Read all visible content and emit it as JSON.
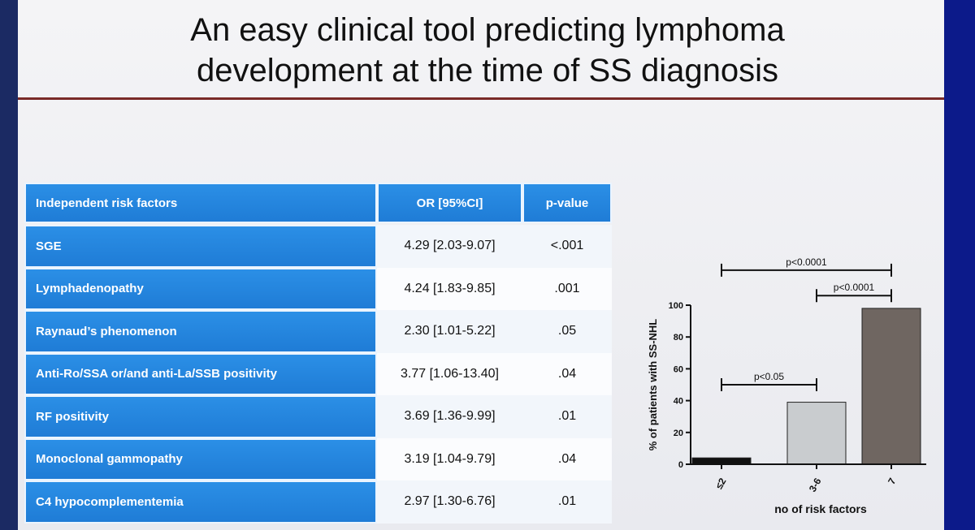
{
  "slide": {
    "title_line1": "An easy clinical tool predicting lymphoma",
    "title_line2": "development at the time of SS diagnosis"
  },
  "table": {
    "headers": [
      "Independent risk factors",
      "OR [95%CI]",
      "p-value"
    ],
    "rows": [
      {
        "factor": "SGE",
        "or": "4.29 [2.03-9.07]",
        "p": "<.001"
      },
      {
        "factor": "Lymphadenopathy",
        "or": "4.24 [1.83-9.85]",
        "p": ".001"
      },
      {
        "factor": "Raynaud’s phenomenon",
        "or": "2.30 [1.01-5.22]",
        "p": ".05"
      },
      {
        "factor": "Anti-Ro/SSA or/and anti-La/SSB positivity",
        "or": "3.77 [1.06-13.40]",
        "p": ".04"
      },
      {
        "factor": "RF positivity",
        "or": "3.69 [1.36-9.99]",
        "p": ".01"
      },
      {
        "factor": "Monoclonal gammopathy",
        "or": "3.19 [1.04-9.79]",
        "p": ".04"
      },
      {
        "factor": "C4 hypocomplementemia",
        "or": "2.97 [1.30-6.76]",
        "p": ".01"
      }
    ]
  },
  "chart_data": {
    "type": "bar",
    "categories": [
      "≤2",
      "3-6",
      "7"
    ],
    "values": [
      4,
      39,
      98
    ],
    "colors": [
      "#111111",
      "#c9cccf",
      "#6f6661"
    ],
    "ylabel": "% of patients with SS-NHL",
    "xlabel": "no of risk factors",
    "ylim": [
      0,
      100
    ],
    "yticks": [
      0,
      20,
      40,
      60,
      80,
      100
    ],
    "comparisons": [
      {
        "from": 0,
        "to": 1,
        "label": "p<0.05",
        "level": 50
      },
      {
        "from": 1,
        "to": 2,
        "label": "p<0.0001",
        "level": 106
      },
      {
        "from": 0,
        "to": 2,
        "label": "p<0.0001",
        "level": 122
      }
    ]
  }
}
